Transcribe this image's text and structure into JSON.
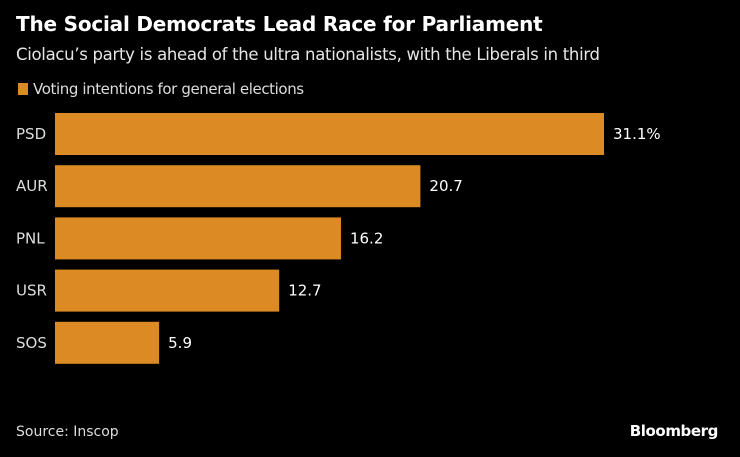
{
  "chart_data": {
    "type": "bar",
    "orientation": "horizontal",
    "title": "The Social Democrats Lead Race for Parliament",
    "subtitle": "Ciolacu’s party is ahead of the ultra nationalists, with the Liberals in third",
    "categories": [
      "PSD",
      "AUR",
      "PNL",
      "USR",
      "SOS"
    ],
    "series": [
      {
        "name": "Voting intentions for general elections",
        "values": [
          31.1,
          20.7,
          16.2,
          12.7,
          5.9
        ],
        "color": "#dc8a24"
      }
    ],
    "data_labels": [
      "31.1%",
      "20.7",
      "16.2",
      "12.7",
      "5.9"
    ],
    "xlim": [
      0,
      35
    ],
    "grid": false,
    "legend_position": "top-left",
    "source": "Source: Inscop",
    "branding": "Bloomberg"
  }
}
